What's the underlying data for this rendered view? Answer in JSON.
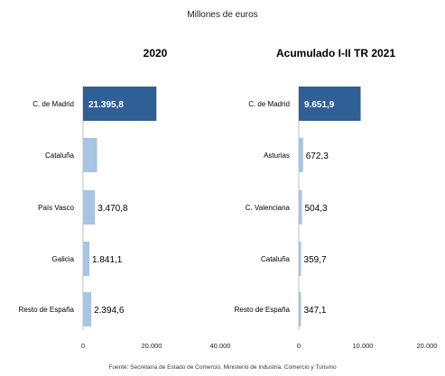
{
  "subtitle": "Millones de euros",
  "source": "Fuente: Secretaría de Estado de Comercio. Ministerio de Industria, Comercio y Turismo",
  "colors": {
    "highlight": "#2f5f95",
    "bar": "#a7c4e2"
  },
  "chart_data": [
    {
      "type": "bar",
      "orientation": "horizontal",
      "title": "2020",
      "categories": [
        "C. de Madrid",
        "Cataluña",
        "País Vasco",
        "Galicia",
        "Resto de España"
      ],
      "values": [
        21395.8,
        4100,
        3470.8,
        1841.1,
        2394.6
      ],
      "labels": [
        "21.395,8",
        "",
        "3.470,8",
        "1.841,1",
        "2.394,6"
      ],
      "highlight_index": 0,
      "xlim": [
        0,
        40000
      ],
      "xticks": [
        0,
        20000,
        40000
      ],
      "xtick_labels": [
        "0",
        "20.000",
        "40.000"
      ],
      "grid": false
    },
    {
      "type": "bar",
      "orientation": "horizontal",
      "title": "Acumulado I-II TR 2021",
      "categories": [
        "C. de Madrid",
        "Asturias",
        "C. Valenciana",
        "Cataluña",
        "Resto de España"
      ],
      "values": [
        9651.9,
        672.3,
        504.3,
        359.7,
        347.1
      ],
      "labels": [
        "9.651,9",
        "672,3",
        "504,3",
        "359,7",
        "347,1"
      ],
      "highlight_index": 0,
      "xlim": [
        0,
        20000
      ],
      "xticks": [
        0,
        10000,
        20000
      ],
      "xtick_labels": [
        "0",
        "10.000",
        "20.000"
      ],
      "grid": false
    }
  ]
}
